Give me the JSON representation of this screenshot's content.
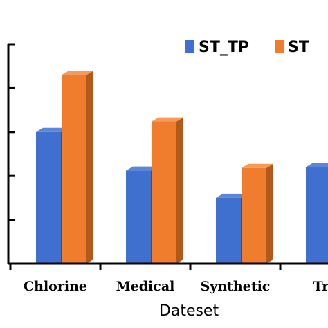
{
  "chart_data": {
    "type": "bar",
    "style": "3d-bars",
    "xlabel": "Dateset",
    "ylabel": "",
    "categories": [
      "Chlorine",
      "Medical",
      "Synthetic",
      "Tra"
    ],
    "series": [
      {
        "name": "ST_TP",
        "values": [
          3.0,
          2.12,
          1.5,
          2.2
        ]
      },
      {
        "name": "ST",
        "values": [
          4.3,
          3.24,
          2.18,
          null
        ]
      }
    ],
    "ylim": [
      0,
      5.0
    ],
    "y_tick_count": 5,
    "grid": false,
    "legend": "top-right",
    "colors": {
      "ST_TP": {
        "front": "#3f6fcf",
        "side": "#2a4f9e",
        "top": "#5c86d6"
      },
      "ST": {
        "front": "#f07c2e",
        "side": "#b35a1a",
        "top": "#f59a5a"
      },
      "axis": "#000000"
    }
  }
}
